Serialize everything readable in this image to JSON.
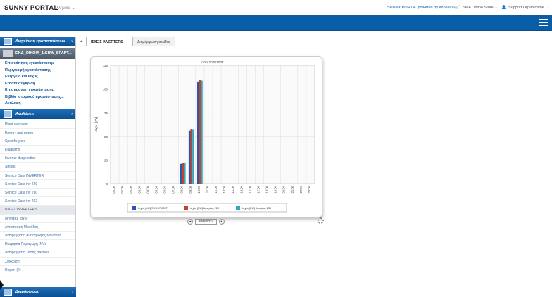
{
  "header": {
    "brand": "SUNNY PORTAL",
    "language": "Ελληνικά ⌄",
    "powered": "SUNNY PORTAL powered by ennexOS",
    "store": "SMA Online Store ⌄",
    "user": "Support Ограničenje ⌄"
  },
  "sidebar": {
    "section1": "Διαχείριση εγκαταστάσεων",
    "plant": "ΕΚΔ_ΟΙΚΟΙΑ_1:SHW_SPAPT...",
    "nav": [
      "Επισκόπηση εγκατάστασης",
      "Περιγραφή εγκατάστασης",
      "Ενέργεια και ισχύς",
      "Ετήσια σύγκριση",
      "Επισήμανση εγκατάστασης",
      "Βιβλίο ιστορικού εγκατάστασης...",
      "Ανάλυση"
    ],
    "section2": "Αναλύσεις",
    "sub": [
      "Plant overview",
      "Energy and power",
      "Specific yield",
      "Diagrams",
      "Inverter diagnostics",
      "Strings",
      "Service Data INVERTER",
      "Service Data inv 229",
      "Service Data inv 230",
      "Service Data inv 222",
      "ΙΣΧΕΙΣ INVERTERS",
      "Μηνιαίες Ισχύς",
      "Αντίστροφη Μονάδας",
      "Διαγράμματα Αντίστροφης Μονάδας",
      "Ημερησία Παραγωγή INVs",
      "Διαγράμματα Τάσης Δικτύου",
      "Σύγκριση",
      "Report (2)"
    ],
    "active_sub": 10,
    "section3": "Διαμόρφωση"
  },
  "tabs": {
    "active": "ΙΣΧΕΙΣ INVERTERS",
    "other": "Διαμόρφωση σελίδας"
  },
  "pager": {
    "date": "20/5/2024",
    "prev": "◂",
    "next": "▸"
  },
  "colors": {
    "series1": "#2a55b0",
    "series2": "#c0462a",
    "series3": "#3aa6b8",
    "brand_blue": "#0a5ea8"
  },
  "chart_data": {
    "type": "bar",
    "title": "από 20/5/2024",
    "ylabel": "Ισχύς [kW]",
    "ylim": [
      0,
      125
    ],
    "yticks": [
      0,
      25,
      50,
      75,
      100,
      125
    ],
    "categories": [
      "00:00",
      "01:00",
      "02:00",
      "03:00",
      "04:00",
      "05:00",
      "06:00",
      "07:00",
      "08:00",
      "09:00",
      "10:00",
      "11:00",
      "12:00",
      "13:00",
      "14:00",
      "15:00",
      "16:00",
      "17:00",
      "18:00",
      "19:00",
      "20:00",
      "21:00",
      "22:00",
      "23:00"
    ],
    "series": [
      {
        "name": "Ισχύς [kW] SHW17-2327",
        "values": [
          0,
          0,
          0,
          0,
          0,
          0,
          0,
          0,
          21,
          56,
          108,
          0,
          0,
          0,
          0,
          0,
          0,
          0,
          0,
          0,
          0,
          0,
          0,
          0
        ]
      },
      {
        "name": "Ισχύς [kW] Αγωγέας 229",
        "values": [
          0,
          0,
          0,
          0,
          0,
          0,
          0,
          0,
          22,
          58,
          110,
          0,
          0,
          0,
          0,
          0,
          0,
          0,
          0,
          0,
          0,
          0,
          0,
          0
        ]
      },
      {
        "name": "Ισχύς [kW] Αγωγέας 230",
        "values": [
          0,
          0,
          0,
          0,
          0,
          0,
          0,
          0,
          22,
          57,
          109,
          0,
          0,
          0,
          0,
          0,
          0,
          0,
          0,
          0,
          0,
          0,
          0,
          0
        ]
      }
    ],
    "grid": true,
    "legend": "bottom"
  }
}
